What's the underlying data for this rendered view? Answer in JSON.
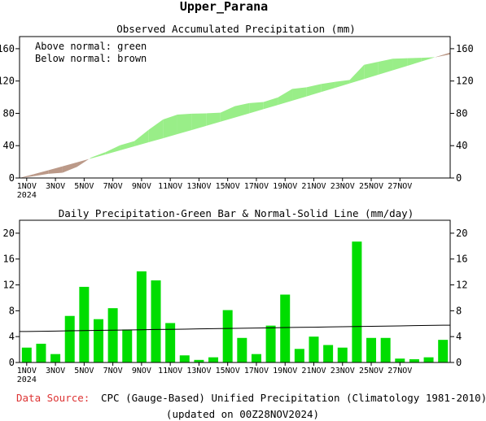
{
  "page": {
    "region_title": "Upper_Parana",
    "source_label": "Data Source:",
    "source_text": "CPC (Gauge-Based) Unified Precipitation (Climatology 1981-2010)",
    "updated_text": "(updated on 00Z28NOV2024)"
  },
  "colors": {
    "above": "#99ee88",
    "below": "#bb9988",
    "bar": "#00dd00",
    "source_label": "#dd3333"
  },
  "chart_data": [
    {
      "type": "area",
      "title": "Observed Accumulated Precipitation (mm)",
      "legend": [
        "Above normal: green",
        "Below normal: brown"
      ],
      "legend_placement": "top-left",
      "ylim": [
        0,
        175
      ],
      "yticks": [
        0,
        40,
        80,
        120,
        160
      ],
      "x_tick_labels": [
        "1NOV",
        "3NOV",
        "5NOV",
        "7NOV",
        "9NOV",
        "11NOV",
        "13NOV",
        "15NOV",
        "17NOV",
        "19NOV",
        "21NOV",
        "23NOV",
        "25NOV",
        "27NOV"
      ],
      "x_sub_label": "2024",
      "observed": [
        2.3,
        5.2,
        6.5,
        13.7,
        25.4,
        32.1,
        40.5,
        45.6,
        59.7,
        72.4,
        78.5,
        79.6,
        80.0,
        80.8,
        88.9,
        92.7,
        94.0,
        99.7,
        110.2,
        112.3,
        116.3,
        119.0,
        121.3,
        140.0,
        143.8,
        147.6,
        148.2,
        148.7,
        149.5,
        153.0
      ],
      "normal": [
        4.8,
        9.6,
        14.5,
        19.4,
        24.3,
        29.2,
        34.2,
        39.2,
        44.2,
        49.2,
        54.3,
        59.4,
        64.5,
        69.6,
        74.8,
        80.0,
        85.2,
        90.4,
        95.7,
        101.0,
        106.3,
        111.6,
        117.0,
        122.4,
        127.8,
        133.2,
        138.7,
        144.2,
        149.7,
        155.2
      ]
    },
    {
      "type": "bar",
      "title": "Daily Precipitation-Green Bar & Normal-Solid Line (mm/day)",
      "ylim": [
        0,
        22
      ],
      "yticks": [
        0,
        4,
        8,
        12,
        16,
        20
      ],
      "x_tick_labels": [
        "1NOV",
        "3NOV",
        "5NOV",
        "7NOV",
        "9NOV",
        "11NOV",
        "13NOV",
        "15NOV",
        "17NOV",
        "19NOV",
        "21NOV",
        "23NOV",
        "25NOV",
        "27NOV"
      ],
      "x_sub_label": "2024",
      "values": [
        2.3,
        2.9,
        1.3,
        7.2,
        11.7,
        6.7,
        8.4,
        5.1,
        14.1,
        12.7,
        6.1,
        1.1,
        0.4,
        0.8,
        8.1,
        3.8,
        1.3,
        5.7,
        10.5,
        2.1,
        4.0,
        2.7,
        2.3,
        18.7,
        3.8,
        3.8,
        0.6,
        0.5,
        0.8,
        3.5
      ],
      "normal_line": [
        4.8,
        4.83,
        4.86,
        4.9,
        4.93,
        4.96,
        5.0,
        5.03,
        5.06,
        5.1,
        5.13,
        5.16,
        5.2,
        5.23,
        5.26,
        5.3,
        5.33,
        5.36,
        5.4,
        5.43,
        5.46,
        5.5,
        5.53,
        5.56,
        5.6,
        5.63,
        5.66,
        5.7,
        5.73,
        5.76
      ]
    }
  ]
}
